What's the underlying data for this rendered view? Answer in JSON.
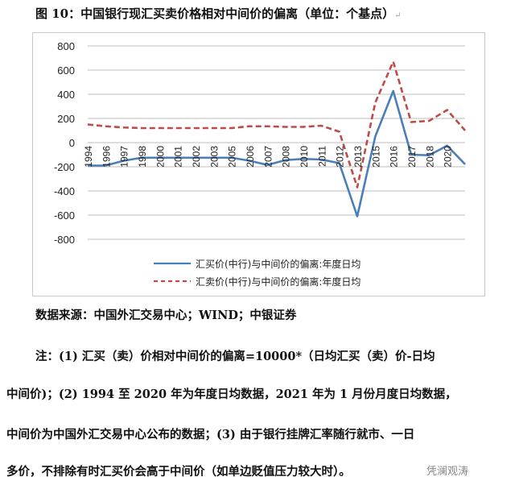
{
  "title": "图 10：中国银行现汇买卖价格相对中间价的偏离（单位：个基点）",
  "chart_data": {
    "type": "line",
    "title": "",
    "categories": [
      "1994",
      "1996",
      "1997",
      "1998",
      "2000",
      "2001",
      "2002",
      "2003",
      "2005",
      "2006",
      "2007",
      "2008",
      "2010",
      "2011",
      "2012",
      "2013",
      "2015",
      "2016",
      "2017",
      "2018",
      "2020",
      ""
    ],
    "ylim": [
      -800,
      800
    ],
    "yticks": [
      "800",
      "600",
      "400",
      "200",
      "0",
      "-200",
      "-400",
      "-600",
      "-800"
    ],
    "grid": true,
    "legend_position": "bottom",
    "series": [
      {
        "name": "汇买价(中行)与中间价的偏离:年度日均",
        "color": "#4a7ebb",
        "dash": false,
        "values": [
          -190,
          -190,
          -150,
          -125,
          -125,
          -125,
          -125,
          -125,
          -125,
          -150,
          -185,
          -145,
          -135,
          -140,
          -170,
          -610,
          50,
          427,
          -100,
          -105,
          -25,
          -180
        ]
      },
      {
        "name": "汇卖价(中行)与中间价的偏离:年度日均",
        "color": "#be4b48",
        "dash": true,
        "values": [
          150,
          135,
          125,
          120,
          120,
          120,
          120,
          120,
          120,
          135,
          135,
          130,
          130,
          140,
          90,
          -370,
          330,
          670,
          170,
          180,
          270,
          100
        ]
      }
    ]
  },
  "text": {
    "source": "数据来源：中国外汇交易中心；WIND；中银证券",
    "note1": "注：(1) 汇买（卖）价相对中间价的偏离=10000*（日均汇买（卖）价-日均",
    "note2": "中间价)；(2) 1994 至 2020 年为年度日均数据，2021 年为 1 月份月度日均数据，",
    "note3": "中间价为中国外汇交易中心公布的数据；(3) 由于银行挂牌汇率随行就市、一日",
    "note4": "多价，不排除有时汇买价会高于中间价（如单边贬值压力较大时）。",
    "watermark": "凭澜观涛"
  }
}
